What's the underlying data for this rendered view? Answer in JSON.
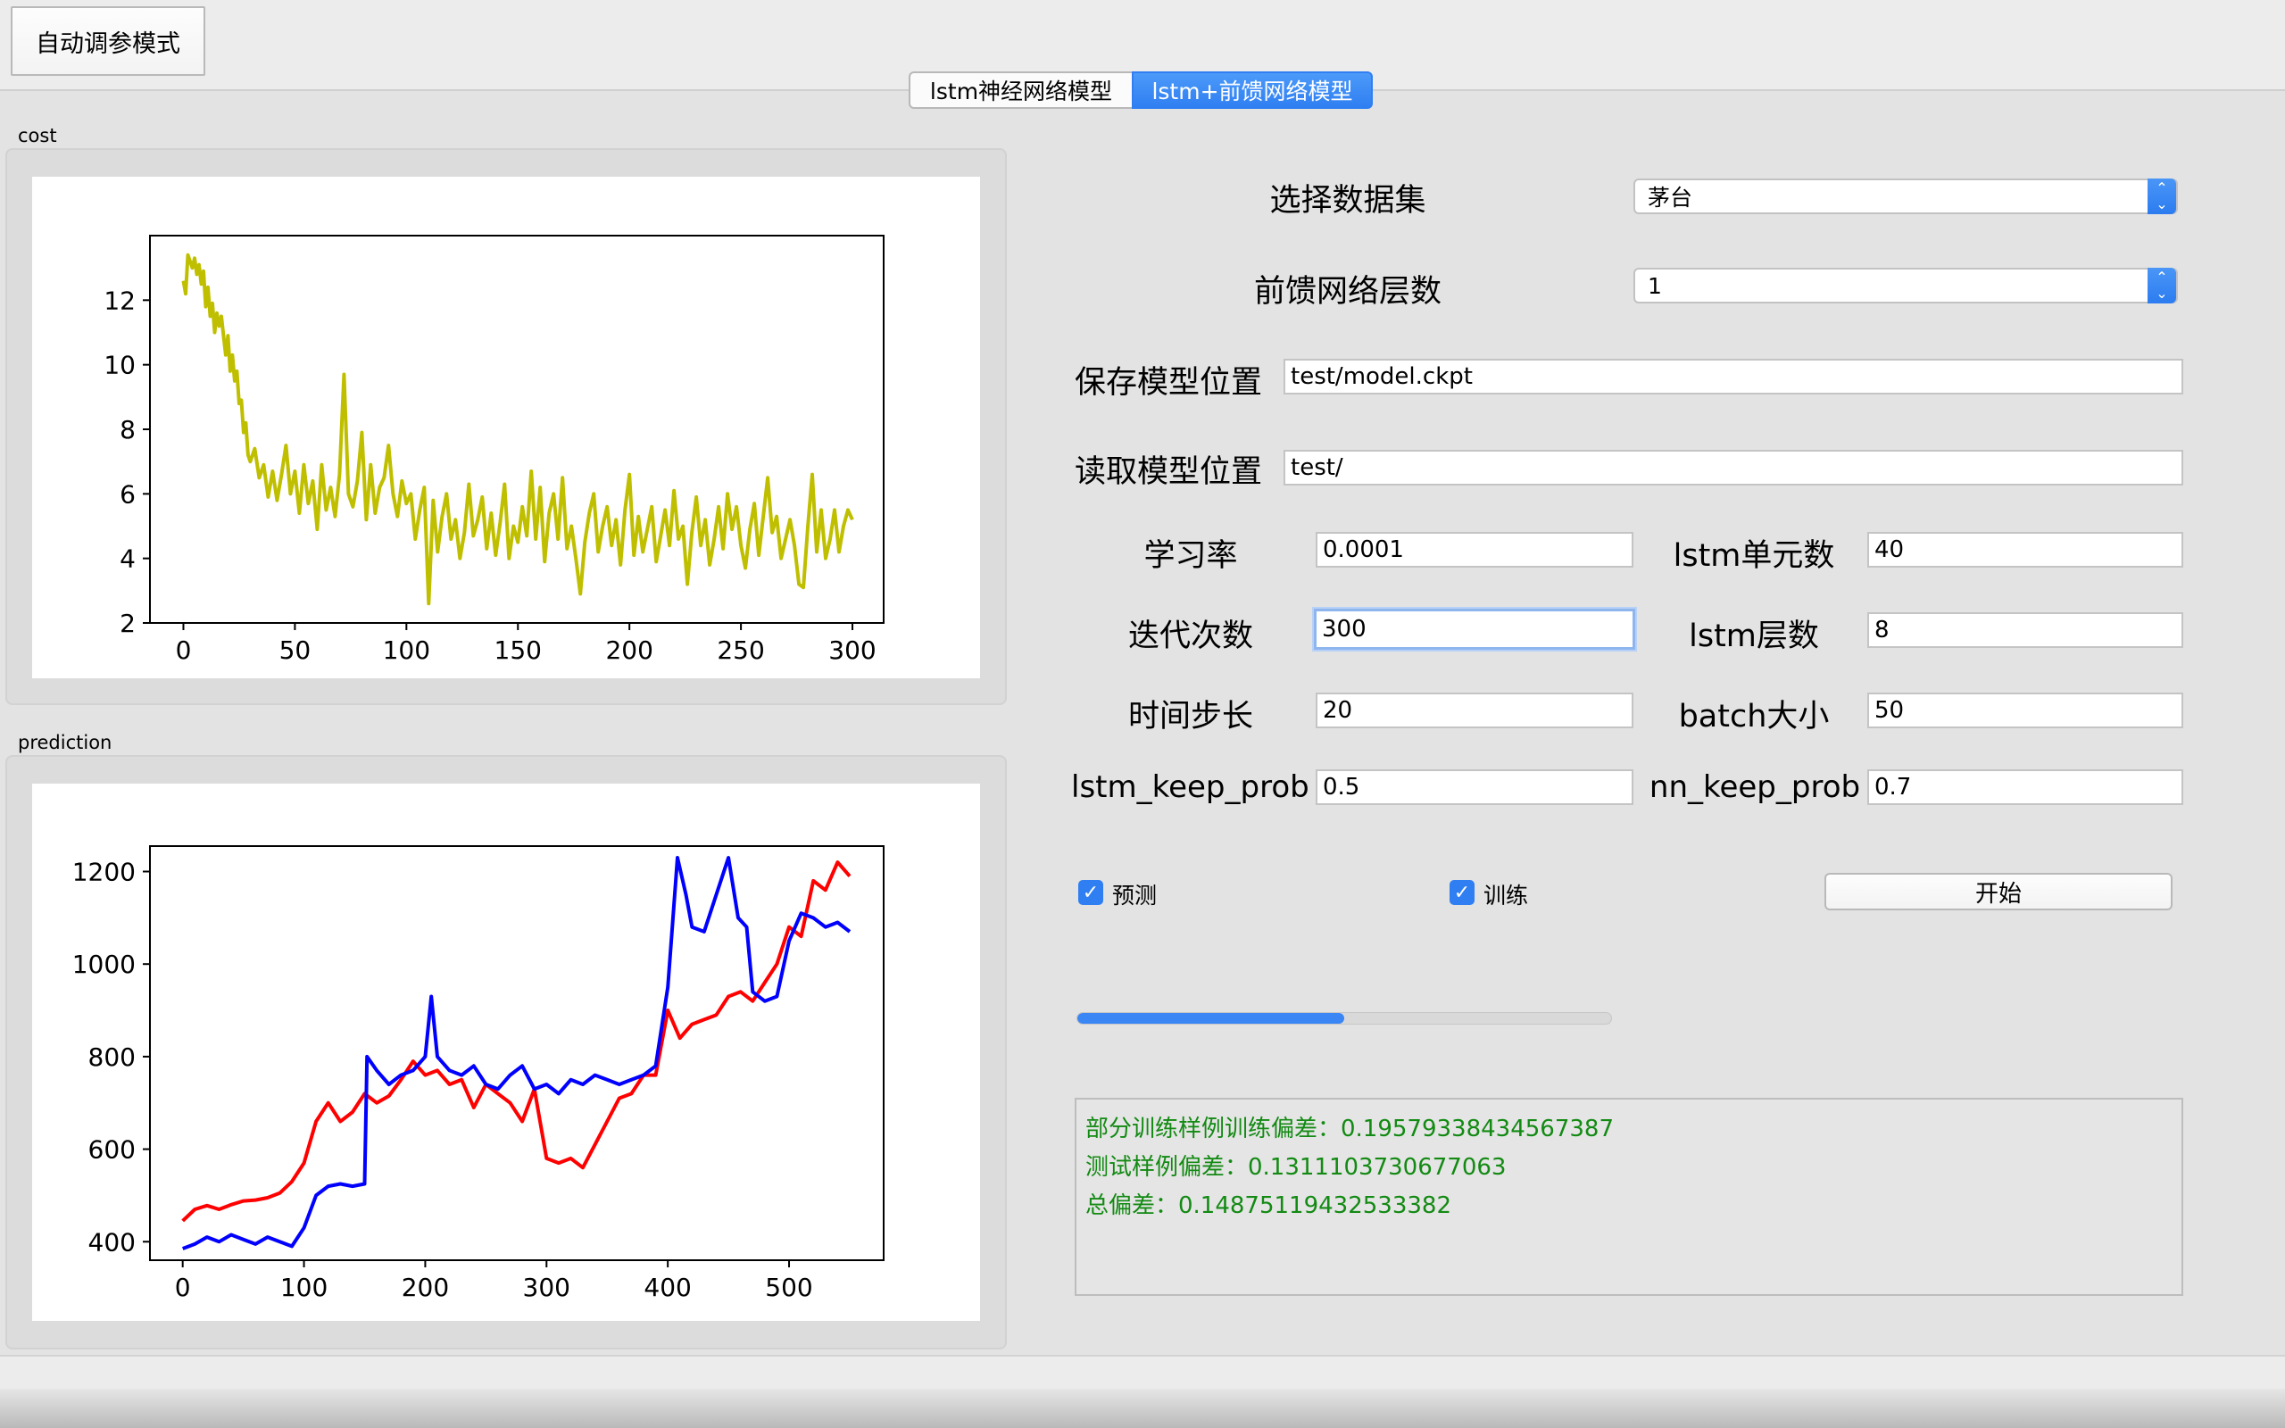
{
  "mode_button": "自动调参模式",
  "tabs": [
    {
      "label": "lstm神经网络模型",
      "active": false
    },
    {
      "label": "lstm+前馈网络模型",
      "active": true
    }
  ],
  "charts_panel": {
    "cost_label": "cost",
    "prediction_label": "prediction"
  },
  "form": {
    "dataset": {
      "label": "选择数据集",
      "value": "茅台"
    },
    "ff_layers": {
      "label": "前馈网络层数",
      "value": "1"
    },
    "save_path": {
      "label": "保存模型位置",
      "value": "test/model.ckpt"
    },
    "load_path": {
      "label": "读取模型位置",
      "value": "test/"
    },
    "learning_rate": {
      "label": "学习率",
      "value": "0.0001"
    },
    "lstm_units": {
      "label": "lstm单元数",
      "value": "40"
    },
    "iterations": {
      "label": "迭代次数",
      "value": "300"
    },
    "lstm_layers": {
      "label": "lstm层数",
      "value": "8"
    },
    "time_steps": {
      "label": "时间步长",
      "value": "20"
    },
    "batch_size": {
      "label": "batch大小",
      "value": "50"
    },
    "lstm_keep_prob": {
      "label": "lstm_keep_prob",
      "value": "0.5"
    },
    "nn_keep_prob": {
      "label": "nn_keep_prob",
      "value": "0.7"
    }
  },
  "options": {
    "predict": {
      "label": "预测",
      "checked": true
    },
    "train": {
      "label": "训练",
      "checked": true
    },
    "start_button": "开始"
  },
  "progress": {
    "fraction": 0.5
  },
  "log": [
    "部分训练样例训练偏差：0.19579338434567387",
    "测试样例偏差：0.1311103730677063",
    "总偏差：0.14875119432533382"
  ],
  "colors": {
    "accent": "#2f7ff2",
    "cost_line": "#bfbf00",
    "pred_true": "#ff0000",
    "pred_model": "#0000ff",
    "log_text": "#138a13"
  },
  "chart_data": [
    {
      "type": "line",
      "title": "",
      "xlabel": "",
      "ylabel": "",
      "xlim": [
        -15,
        314
      ],
      "ylim": [
        2,
        14.0
      ],
      "xticks": [
        0,
        50,
        100,
        150,
        200,
        250,
        300
      ],
      "yticks": [
        2,
        4,
        6,
        8,
        10,
        12
      ],
      "grid": false,
      "series": [
        {
          "color": "#bfbf00",
          "x": [
            0,
            1,
            2,
            3,
            4,
            5,
            6,
            7,
            8,
            9,
            10,
            11,
            12,
            13,
            14,
            15,
            16,
            17,
            18,
            19,
            20,
            21,
            22,
            23,
            24,
            25,
            26,
            27,
            28,
            29,
            30,
            32,
            34,
            36,
            38,
            40,
            42,
            44,
            46,
            48,
            50,
            52,
            54,
            56,
            58,
            60,
            62,
            64,
            66,
            68,
            70,
            72,
            74,
            76,
            78,
            80,
            82,
            84,
            86,
            88,
            90,
            92,
            94,
            96,
            98,
            100,
            102,
            104,
            106,
            108,
            110,
            112,
            114,
            116,
            118,
            120,
            122,
            124,
            126,
            128,
            130,
            132,
            134,
            136,
            138,
            140,
            142,
            144,
            146,
            148,
            150,
            152,
            154,
            156,
            158,
            160,
            162,
            164,
            166,
            168,
            170,
            172,
            174,
            176,
            178,
            180,
            182,
            184,
            186,
            188,
            190,
            192,
            194,
            196,
            198,
            200,
            202,
            204,
            206,
            208,
            210,
            212,
            214,
            216,
            218,
            220,
            222,
            224,
            226,
            228,
            230,
            232,
            234,
            236,
            238,
            240,
            242,
            244,
            246,
            248,
            250,
            252,
            254,
            256,
            258,
            260,
            262,
            264,
            266,
            268,
            270,
            272,
            274,
            276,
            278,
            280,
            282,
            284,
            286,
            288,
            290,
            292,
            294,
            296,
            298,
            300
          ],
          "y": [
            12.6,
            12.2,
            13.4,
            13.2,
            13.0,
            13.3,
            12.8,
            13.1,
            12.5,
            12.9,
            11.8,
            12.4,
            11.5,
            11.9,
            11.0,
            11.6,
            11.2,
            11.5,
            10.9,
            10.3,
            10.9,
            9.8,
            10.3,
            9.5,
            9.8,
            8.8,
            8.9,
            7.9,
            8.2,
            7.2,
            7.0,
            7.4,
            6.5,
            6.9,
            5.9,
            6.7,
            5.8,
            6.6,
            7.5,
            6.0,
            6.7,
            5.4,
            6.9,
            5.7,
            6.4,
            4.9,
            6.9,
            5.5,
            6.2,
            5.3,
            6.6,
            9.7,
            6.0,
            5.6,
            6.4,
            7.9,
            5.2,
            6.9,
            5.4,
            6.2,
            6.5,
            7.5,
            6.0,
            5.3,
            6.4,
            5.7,
            6.0,
            4.6,
            5.5,
            6.2,
            2.6,
            5.8,
            4.2,
            5.3,
            6.0,
            4.6,
            5.2,
            4.0,
            4.8,
            6.3,
            4.7,
            5.2,
            5.9,
            4.3,
            5.4,
            4.1,
            5.1,
            6.3,
            4.0,
            5.0,
            4.5,
            5.6,
            4.7,
            6.7,
            4.6,
            6.2,
            3.9,
            5.4,
            6.0,
            4.6,
            6.5,
            4.3,
            5.0,
            4.0,
            2.9,
            4.5,
            5.4,
            6.0,
            4.2,
            5.0,
            5.6,
            4.4,
            5.2,
            3.8,
            5.5,
            6.6,
            4.1,
            5.3,
            4.2,
            4.9,
            5.6,
            3.9,
            4.7,
            5.5,
            4.4,
            6.1,
            4.6,
            5.0,
            3.2,
            4.8,
            5.9,
            4.4,
            5.2,
            3.8,
            4.6,
            5.6,
            4.3,
            6.0,
            4.9,
            5.6,
            4.4,
            3.7,
            4.9,
            5.7,
            4.1,
            5.3,
            6.5,
            4.8,
            5.3,
            4.0,
            4.6,
            5.2,
            4.4,
            3.2,
            3.1,
            5.0,
            6.6,
            4.2,
            5.5,
            4.0,
            4.6,
            5.5,
            4.2,
            5.0,
            5.5,
            5.2
          ]
        }
      ]
    },
    {
      "type": "line",
      "title": "",
      "xlabel": "",
      "ylabel": "",
      "xlim": [
        -27,
        578
      ],
      "ylim": [
        360,
        1255
      ],
      "xticks": [
        0,
        100,
        200,
        300,
        400,
        500
      ],
      "yticks": [
        400,
        600,
        800,
        1000,
        1200
      ],
      "grid": false,
      "series": [
        {
          "color": "#ff0000",
          "x": [
            0,
            10,
            20,
            30,
            40,
            50,
            60,
            70,
            80,
            90,
            100,
            110,
            120,
            130,
            140,
            150,
            160,
            170,
            180,
            190,
            200,
            210,
            220,
            230,
            240,
            250,
            260,
            270,
            280,
            290,
            300,
            310,
            320,
            330,
            340,
            350,
            360,
            370,
            380,
            390,
            400,
            410,
            420,
            430,
            440,
            450,
            460,
            470,
            480,
            490,
            500,
            510,
            520,
            530,
            540,
            550
          ],
          "y": [
            445,
            470,
            478,
            470,
            480,
            488,
            490,
            495,
            505,
            530,
            570,
            660,
            700,
            660,
            680,
            720,
            700,
            715,
            750,
            790,
            760,
            770,
            740,
            750,
            690,
            740,
            720,
            700,
            660,
            730,
            580,
            570,
            580,
            560,
            610,
            660,
            710,
            720,
            760,
            760,
            900,
            840,
            870,
            880,
            890,
            930,
            940,
            920,
            960,
            1000,
            1080,
            1060,
            1180,
            1160,
            1220,
            1190
          ]
        },
        {
          "color": "#0000ff",
          "x": [
            0,
            10,
            20,
            30,
            40,
            50,
            60,
            70,
            80,
            90,
            100,
            110,
            120,
            130,
            140,
            150,
            152,
            160,
            170,
            180,
            190,
            200,
            205,
            210,
            220,
            230,
            240,
            250,
            260,
            270,
            280,
            290,
            300,
            310,
            320,
            330,
            340,
            350,
            360,
            370,
            380,
            390,
            400,
            408,
            415,
            420,
            430,
            440,
            450,
            458,
            465,
            470,
            480,
            490,
            500,
            510,
            520,
            530,
            540,
            550
          ],
          "y": [
            385,
            395,
            410,
            400,
            415,
            405,
            395,
            410,
            400,
            390,
            430,
            500,
            520,
            525,
            520,
            525,
            800,
            770,
            740,
            760,
            770,
            800,
            930,
            800,
            770,
            760,
            780,
            740,
            730,
            760,
            780,
            730,
            740,
            720,
            750,
            740,
            760,
            750,
            740,
            750,
            760,
            780,
            950,
            1230,
            1150,
            1080,
            1070,
            1150,
            1230,
            1100,
            1080,
            940,
            920,
            930,
            1050,
            1110,
            1100,
            1080,
            1090,
            1070
          ]
        }
      ]
    }
  ]
}
